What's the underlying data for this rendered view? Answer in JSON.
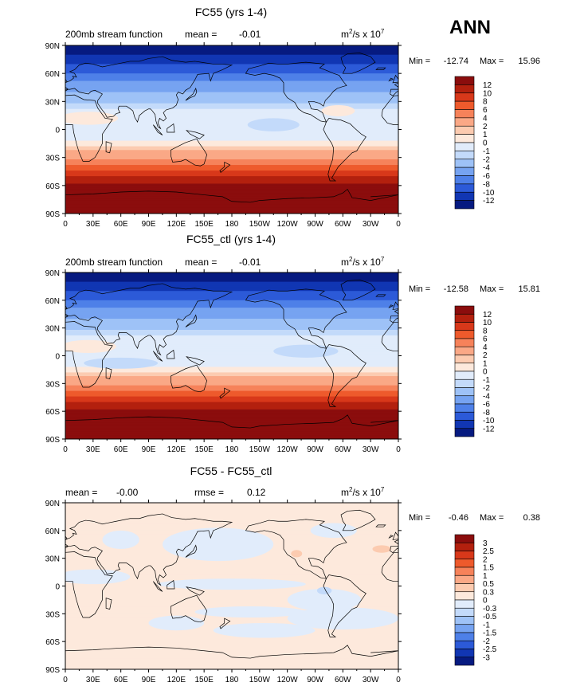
{
  "header": {
    "season": "ANN"
  },
  "x_ticks": [
    "0",
    "30E",
    "60E",
    "90E",
    "120E",
    "150E",
    "180",
    "150W",
    "120W",
    "90W",
    "60W",
    "30W",
    "0"
  ],
  "y_ticks": [
    "90N",
    "60N",
    "30N",
    "0",
    "30S",
    "60S",
    "90S"
  ],
  "chart_data": [
    {
      "type": "heatmap",
      "title": "FC55 (yrs 1-4)",
      "subtitle_left": "200mb stream function",
      "mean_label": "mean =",
      "mean_value": "-0.01",
      "units_main": "m",
      "units_sup1": "2",
      "units_mid": "/s x 10",
      "units_sup2": "7",
      "min_label": "Min =",
      "min_value": "-12.74",
      "max_label": "Max =",
      "max_value": "15.96",
      "xlim": [
        0,
        360
      ],
      "ylim": [
        -90,
        90
      ],
      "levels": [
        "12",
        "10",
        "8",
        "6",
        "4",
        "2",
        "1",
        "0",
        "-1",
        "-2",
        "-4",
        "-6",
        "-8",
        "-10",
        "-12"
      ],
      "colors": [
        "#8b0d0d",
        "#b3200e",
        "#d8381a",
        "#ee5a2c",
        "#f6825a",
        "#faa886",
        "#fccbb0",
        "#fde9dc",
        "#e1ecfb",
        "#c3dafa",
        "#9ec2f7",
        "#76a3f1",
        "#4e80e8",
        "#2c5ad8",
        "#1136b3",
        "#061a80"
      ],
      "profile": [
        {
          "lat": 90,
          "v": -13
        },
        {
          "lat": 80,
          "v": -12
        },
        {
          "lat": 70,
          "v": -10
        },
        {
          "lat": 60,
          "v": -8
        },
        {
          "lat": 50,
          "v": -5.5
        },
        {
          "lat": 40,
          "v": -4
        },
        {
          "lat": 30,
          "v": -2.5
        },
        {
          "lat": 20,
          "v": -0.5
        },
        {
          "lat": 10,
          "v": -0.5
        },
        {
          "lat": 0,
          "v": -0.5
        },
        {
          "lat": -10,
          "v": -0.2
        },
        {
          "lat": -20,
          "v": 1.5
        },
        {
          "lat": -30,
          "v": 3.5
        },
        {
          "lat": -40,
          "v": 7
        },
        {
          "lat": -50,
          "v": 10
        },
        {
          "lat": -60,
          "v": 12.5
        },
        {
          "lat": -70,
          "v": 14
        },
        {
          "lat": -80,
          "v": 15
        },
        {
          "lat": -90,
          "v": 15.5
        }
      ],
      "blobs": [
        {
          "lon": 25,
          "lat": 12,
          "rlon": 32,
          "rlat": 7,
          "v": 0.6
        },
        {
          "lon": 225,
          "lat": 5,
          "rlon": 28,
          "rlat": 7,
          "v": -1.5
        },
        {
          "lon": 295,
          "lat": 20,
          "rlon": 18,
          "rlat": 6,
          "v": 0.6
        }
      ]
    },
    {
      "type": "heatmap",
      "title": "FC55_ctl (yrs 1-4)",
      "subtitle_left": "200mb stream function",
      "mean_label": "mean =",
      "mean_value": "-0.01",
      "units_main": "m",
      "units_sup1": "2",
      "units_mid": "/s x 10",
      "units_sup2": "7",
      "min_label": "Min =",
      "min_value": "-12.58",
      "max_label": "Max =",
      "max_value": "15.81",
      "xlim": [
        0,
        360
      ],
      "ylim": [
        -90,
        90
      ],
      "levels": [
        "12",
        "10",
        "8",
        "6",
        "4",
        "2",
        "1",
        "0",
        "-1",
        "-2",
        "-4",
        "-6",
        "-8",
        "-10",
        "-12"
      ],
      "colors": [
        "#8b0d0d",
        "#b3200e",
        "#d8381a",
        "#ee5a2c",
        "#f6825a",
        "#faa886",
        "#fccbb0",
        "#fde9dc",
        "#e1ecfb",
        "#c3dafa",
        "#9ec2f7",
        "#76a3f1",
        "#4e80e8",
        "#2c5ad8",
        "#1136b3",
        "#061a80"
      ],
      "profile": [
        {
          "lat": 90,
          "v": -13
        },
        {
          "lat": 80,
          "v": -12
        },
        {
          "lat": 70,
          "v": -10
        },
        {
          "lat": 60,
          "v": -8
        },
        {
          "lat": 50,
          "v": -5.5
        },
        {
          "lat": 40,
          "v": -4
        },
        {
          "lat": 30,
          "v": -2.5
        },
        {
          "lat": 20,
          "v": -0.5
        },
        {
          "lat": 10,
          "v": -0.5
        },
        {
          "lat": 0,
          "v": -0.5
        },
        {
          "lat": -10,
          "v": -0.2
        },
        {
          "lat": -20,
          "v": 1.5
        },
        {
          "lat": -30,
          "v": 3.5
        },
        {
          "lat": -40,
          "v": 7
        },
        {
          "lat": -50,
          "v": 10
        },
        {
          "lat": -60,
          "v": 12.5
        },
        {
          "lat": -70,
          "v": 14
        },
        {
          "lat": -80,
          "v": 15
        },
        {
          "lat": -90,
          "v": 15.5
        }
      ],
      "blobs": [
        {
          "lon": 25,
          "lat": 10,
          "rlon": 30,
          "rlat": 7,
          "v": 0.6
        },
        {
          "lon": 60,
          "lat": -8,
          "rlon": 40,
          "rlat": 6,
          "v": -1.5
        },
        {
          "lon": 260,
          "lat": 5,
          "rlon": 35,
          "rlat": 7,
          "v": -1.5
        }
      ]
    },
    {
      "type": "heatmap",
      "title": "FC55 - FC55_ctl",
      "subtitle_left": "",
      "mean_label": "mean =",
      "mean_value": "-0.00",
      "rmse_label": "rmse =",
      "rmse_value": "0.12",
      "units_main": "m",
      "units_sup1": "2",
      "units_mid": "/s x 10",
      "units_sup2": "7",
      "min_label": "Min =",
      "min_value": "-0.46",
      "max_label": "Max =",
      "max_value": "0.38",
      "xlim": [
        0,
        360
      ],
      "ylim": [
        -90,
        90
      ],
      "levels": [
        "3",
        "2.5",
        "2",
        "1.5",
        "1",
        "0.5",
        "0.3",
        "0",
        "-0.3",
        "-0.5",
        "-1",
        "-1.5",
        "-2",
        "-2.5",
        "-3"
      ],
      "colors": [
        "#8b0d0d",
        "#b3200e",
        "#d8381a",
        "#ee5a2c",
        "#f6825a",
        "#faa886",
        "#fccbb0",
        "#fde9dc",
        "#e1ecfb",
        "#c3dafa",
        "#9ec2f7",
        "#76a3f1",
        "#4e80e8",
        "#2c5ad8",
        "#1136b3",
        "#061a80"
      ],
      "profile": [
        {
          "lat": 90,
          "v": 0.05
        },
        {
          "lat": -90,
          "v": 0.05
        }
      ],
      "blobs": [
        {
          "lon": 165,
          "lat": 45,
          "rlon": 60,
          "rlat": 18,
          "v": -0.1
        },
        {
          "lon": 60,
          "lat": 50,
          "rlon": 20,
          "rlat": 10,
          "v": -0.1
        },
        {
          "lon": 290,
          "lat": 60,
          "rlon": 25,
          "rlat": 8,
          "v": -0.1
        },
        {
          "lon": 30,
          "lat": 10,
          "rlon": 40,
          "rlat": 8,
          "v": -0.1
        },
        {
          "lon": 180,
          "lat": 2,
          "rlon": 80,
          "rlat": 6,
          "v": -0.1
        },
        {
          "lon": 280,
          "lat": -15,
          "rlon": 40,
          "rlat": 12,
          "v": -0.1
        },
        {
          "lon": 300,
          "lat": -35,
          "rlon": 60,
          "rlat": 12,
          "v": -0.1
        },
        {
          "lon": 120,
          "lat": -40,
          "rlon": 30,
          "rlat": 8,
          "v": -0.1
        },
        {
          "lon": 215,
          "lat": -48,
          "rlon": 55,
          "rlat": 8,
          "v": -0.1
        },
        {
          "lon": 200,
          "lat": -28,
          "rlon": 60,
          "rlat": 6,
          "v": -0.1
        },
        {
          "lon": 280,
          "lat": -5,
          "rlon": 8,
          "rlat": 4,
          "v": -0.35
        },
        {
          "lon": 250,
          "lat": 35,
          "rlon": 6,
          "rlat": 4,
          "v": 0.35
        },
        {
          "lon": 342,
          "lat": 40,
          "rlon": 10,
          "rlat": 4,
          "v": 0.35
        }
      ]
    }
  ]
}
